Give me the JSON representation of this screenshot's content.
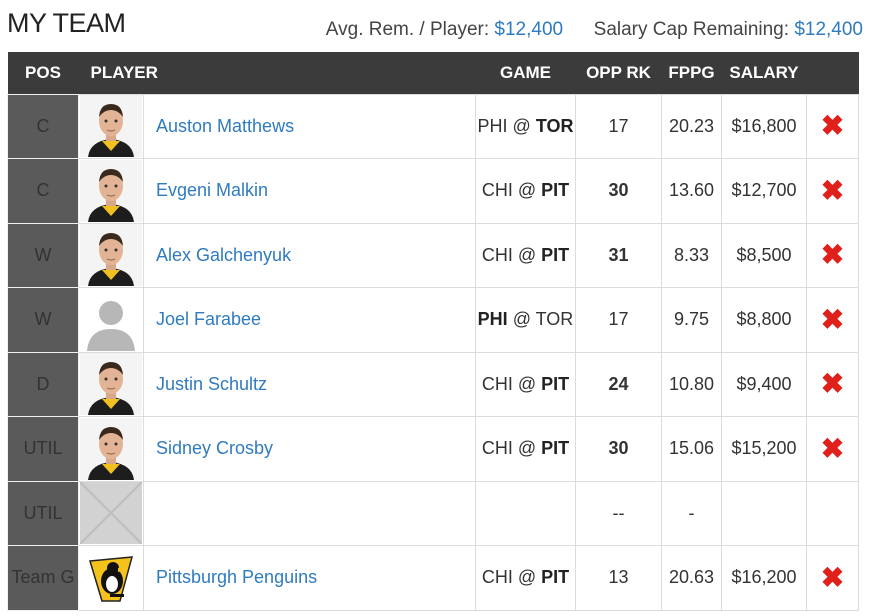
{
  "header": {
    "title": "MY TEAM",
    "avg_label": "Avg. Rem. / Player:",
    "avg_value": "$12,400",
    "cap_label": "Salary Cap Remaining:",
    "cap_value": "$12,400"
  },
  "columns": {
    "pos": "POS",
    "player": "PLAYER",
    "game": "GAME",
    "opp_rk": "OPP RK",
    "fppg": "FPPG",
    "salary": "SALARY"
  },
  "rows": [
    {
      "pos": "C",
      "name": "Auston Matthews",
      "away": "PHI",
      "at": " @ ",
      "home": "TOR",
      "bold_team": "home",
      "opp_rk": "17",
      "opp_rk_green": false,
      "fppg": "20.23",
      "salary": "$16,800",
      "remove": "✖",
      "photo": "player-photo"
    },
    {
      "pos": "C",
      "name": "Evgeni Malkin",
      "away": "CHI",
      "at": " @ ",
      "home": "PIT",
      "bold_team": "home",
      "opp_rk": "30",
      "opp_rk_green": true,
      "fppg": "13.60",
      "salary": "$12,700",
      "remove": "✖",
      "photo": "player-photo"
    },
    {
      "pos": "W",
      "name": "Alex Galchenyuk",
      "away": "CHI",
      "at": " @ ",
      "home": "PIT",
      "bold_team": "home",
      "opp_rk": "31",
      "opp_rk_green": true,
      "fppg": "8.33",
      "salary": "$8,500",
      "remove": "✖",
      "photo": "player-photo"
    },
    {
      "pos": "W",
      "name": "Joel Farabee",
      "away": "PHI",
      "at": " @ ",
      "home": "TOR",
      "bold_team": "away",
      "opp_rk": "17",
      "opp_rk_green": false,
      "fppg": "9.75",
      "salary": "$8,800",
      "remove": "✖",
      "photo": "silhouette"
    },
    {
      "pos": "D",
      "name": "Justin Schultz",
      "away": "CHI",
      "at": " @ ",
      "home": "PIT",
      "bold_team": "home",
      "opp_rk": "24",
      "opp_rk_green": true,
      "fppg": "10.80",
      "salary": "$9,400",
      "remove": "✖",
      "photo": "player-photo"
    },
    {
      "pos": "UTIL",
      "name": "Sidney Crosby",
      "away": "CHI",
      "at": " @ ",
      "home": "PIT",
      "bold_team": "home",
      "opp_rk": "30",
      "opp_rk_green": true,
      "fppg": "15.06",
      "salary": "$15,200",
      "remove": "✖",
      "photo": "player-photo"
    },
    {
      "pos": "UTIL",
      "name": "",
      "away": "",
      "at": "",
      "home": "",
      "bold_team": "",
      "opp_rk": "--",
      "opp_rk_green": false,
      "fppg": "-",
      "salary": "",
      "remove": "",
      "photo": "empty-slot"
    },
    {
      "pos": "Team G",
      "name": "Pittsburgh Penguins",
      "away": "CHI",
      "at": " @ ",
      "home": "PIT",
      "bold_team": "home",
      "opp_rk": "13",
      "opp_rk_green": false,
      "fppg": "20.63",
      "salary": "$16,200",
      "remove": "✖",
      "photo": "team-logo"
    }
  ],
  "colors": {
    "header_bg": "#3b3b3b",
    "pos_bg": "#5a5a5a",
    "link": "#2f7bbf",
    "green": "#3aa63a",
    "remove": "#e0201b"
  }
}
